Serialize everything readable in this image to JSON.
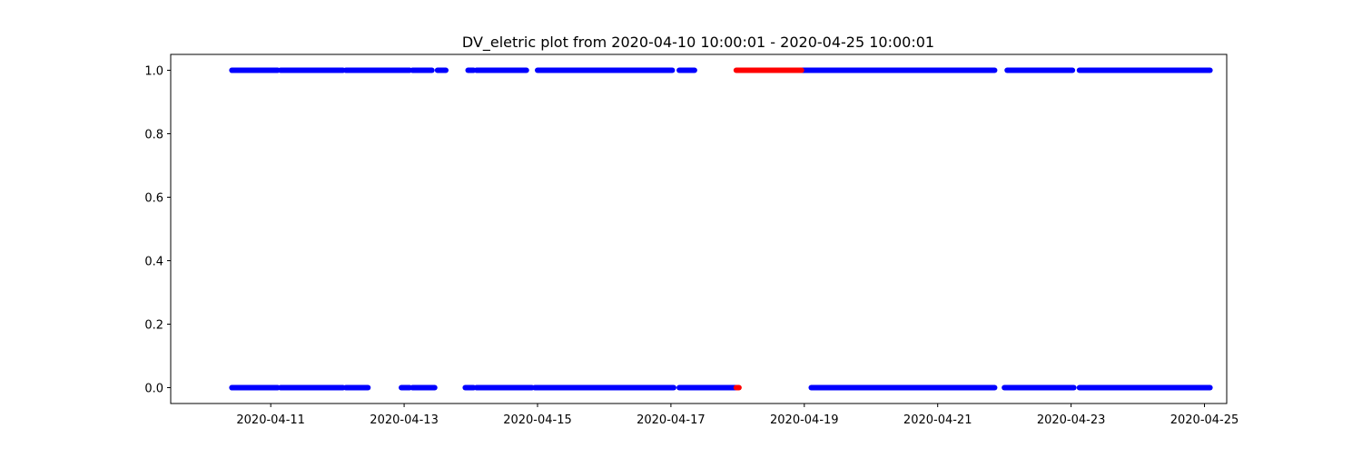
{
  "chart_data": {
    "type": "scatter",
    "title": "DV_eletric plot from 2020-04-10 10:00:01 - 2020-04-25 10:00:01",
    "xlabel": "",
    "ylabel": "",
    "x_axis_type": "date",
    "xlim": [
      "2020-04-09T12:00:00",
      "2020-04-25T08:00:00"
    ],
    "ylim": [
      -0.05,
      1.05
    ],
    "x_ticks": [
      "2020-04-11",
      "2020-04-13",
      "2020-04-15",
      "2020-04-17",
      "2020-04-19",
      "2020-04-21",
      "2020-04-23",
      "2020-04-25"
    ],
    "y_ticks": [
      "0.0",
      "0.2",
      "0.4",
      "0.6",
      "0.8",
      "1.0"
    ],
    "grid": false,
    "legend": "none",
    "series": [
      {
        "color": "#0000ff",
        "y": 1,
        "x_ranges": [
          [
            "2020-04-10T10:00:00",
            "2020-04-11T02:30:00"
          ],
          [
            "2020-04-11T03:30:00",
            "2020-04-12T02:00:00"
          ],
          [
            "2020-04-12T03:00:00",
            "2020-04-13T02:00:00"
          ],
          [
            "2020-04-13T03:00:00",
            "2020-04-13T10:00:00"
          ],
          [
            "2020-04-13T12:00:00",
            "2020-04-13T15:00:00"
          ],
          [
            "2020-04-13T23:00:00",
            "2020-04-14T01:00:00"
          ],
          [
            "2020-04-14T02:00:00",
            "2020-04-14T20:00:00"
          ],
          [
            "2020-04-15T00:00:00",
            "2020-04-16T01:30:00"
          ],
          [
            "2020-04-16T01:30:00",
            "2020-04-17T00:30:00"
          ],
          [
            "2020-04-17T03:00:00",
            "2020-04-17T08:30:00"
          ],
          [
            "2020-04-18T23:00:00",
            "2020-04-21T20:30:00"
          ],
          [
            "2020-04-22T01:00:00",
            "2020-04-23T00:30:00"
          ],
          [
            "2020-04-23T03:00:00",
            "2020-04-25T02:00:00"
          ]
        ]
      },
      {
        "color": "#0000ff",
        "y": 0,
        "x_ranges": [
          [
            "2020-04-10T10:00:00",
            "2020-04-11T02:30:00"
          ],
          [
            "2020-04-11T03:30:00",
            "2020-04-12T02:00:00"
          ],
          [
            "2020-04-12T03:00:00",
            "2020-04-12T11:00:00"
          ],
          [
            "2020-04-12T23:00:00",
            "2020-04-13T02:00:00"
          ],
          [
            "2020-04-13T03:00:00",
            "2020-04-13T11:00:00"
          ],
          [
            "2020-04-13T22:00:00",
            "2020-04-14T01:00:00"
          ],
          [
            "2020-04-14T02:00:00",
            "2020-04-14T22:00:00"
          ],
          [
            "2020-04-14T23:00:00",
            "2020-04-16T01:00:00"
          ],
          [
            "2020-04-16T01:00:00",
            "2020-04-17T01:00:00"
          ],
          [
            "2020-04-17T03:00:00",
            "2020-04-17T23:30:00"
          ],
          [
            "2020-04-19T02:30:00",
            "2020-04-21T20:30:00"
          ],
          [
            "2020-04-22T00:00:00",
            "2020-04-23T01:00:00"
          ],
          [
            "2020-04-23T03:00:00",
            "2020-04-25T02:00:00"
          ]
        ]
      },
      {
        "color": "#ff0000",
        "y": 1,
        "x_ranges": [
          [
            "2020-04-17T23:30:00",
            "2020-04-18T23:00:00"
          ]
        ]
      },
      {
        "color": "#ff0000",
        "y": 0,
        "x_ranges": [
          [
            "2020-04-17T23:30:00",
            "2020-04-18T00:30:00"
          ]
        ]
      }
    ]
  }
}
